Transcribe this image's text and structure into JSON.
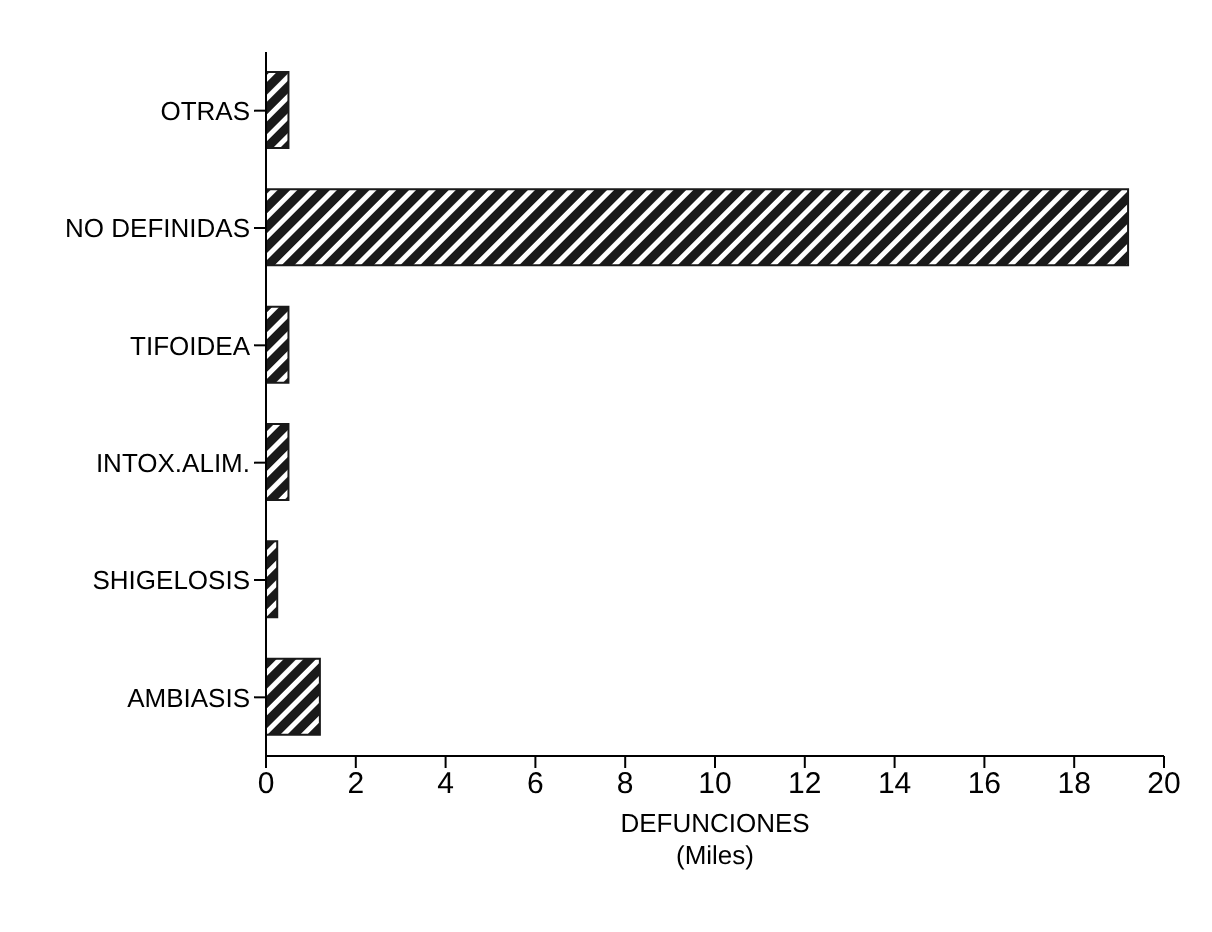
{
  "chart_data": {
    "type": "bar",
    "orientation": "horizontal",
    "categories": [
      "OTRAS",
      "NO DEFINIDAS",
      "TIFOIDEA",
      "INTOX.ALIM.",
      "SHIGELOSIS",
      "AMBIASIS"
    ],
    "values": [
      0.5,
      19.2,
      0.5,
      0.5,
      0.25,
      1.2
    ],
    "color": "#1a1a1a",
    "xlabel": "DEFUNCIONES\n(Miles)",
    "xlim": [
      0,
      20
    ],
    "xticks": [
      0,
      2,
      4,
      6,
      8,
      10,
      12,
      14,
      16,
      18,
      20
    ]
  }
}
